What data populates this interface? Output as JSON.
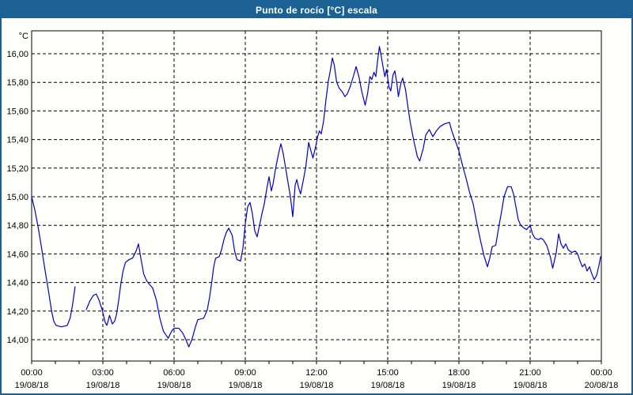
{
  "window": {
    "title": "Punto de rocío [°C] escala",
    "title_bar_color": "#1c6193",
    "border_color": "#1c6193",
    "background": "#ffffff"
  },
  "chart_data": {
    "type": "line",
    "title": "Punto de rocío [°C] escala",
    "y_unit_label": "°C",
    "series_name": "Punto de rocío",
    "line_color": "#0000cc",
    "grid": "dashed",
    "grid_color": "#000000",
    "ylim": [
      13.85,
      16.16
    ],
    "xlim_hours": [
      0,
      24
    ],
    "y_ticks": [
      {
        "v": 16.0,
        "label": "16,00"
      },
      {
        "v": 15.8,
        "label": "15,80"
      },
      {
        "v": 15.6,
        "label": "15,60"
      },
      {
        "v": 15.4,
        "label": "15,40"
      },
      {
        "v": 15.2,
        "label": "15,20"
      },
      {
        "v": 15.0,
        "label": "15,00"
      },
      {
        "v": 14.8,
        "label": "14,80"
      },
      {
        "v": 14.6,
        "label": "14,60"
      },
      {
        "v": 14.4,
        "label": "14,40"
      },
      {
        "v": 14.2,
        "label": "14,20"
      },
      {
        "v": 14.0,
        "label": "14,00"
      }
    ],
    "x_ticks": [
      {
        "hour": 0,
        "time": "00:00",
        "date": "19/08/18"
      },
      {
        "hour": 3,
        "time": "03:00",
        "date": "19/08/18"
      },
      {
        "hour": 6,
        "time": "06:00",
        "date": "19/08/18"
      },
      {
        "hour": 9,
        "time": "09:00",
        "date": "19/08/18"
      },
      {
        "hour": 12,
        "time": "12:00",
        "date": "19/08/18"
      },
      {
        "hour": 15,
        "time": "15:00",
        "date": "19/08/18"
      },
      {
        "hour": 18,
        "time": "18:00",
        "date": "19/08/18"
      },
      {
        "hour": 21,
        "time": "21:00",
        "date": "19/08/18"
      },
      {
        "hour": 24,
        "time": "00:00",
        "date": "20/08/18"
      }
    ],
    "minor_tick_every_hours": 1,
    "points": [
      [
        0.0,
        15.0
      ],
      [
        0.13,
        14.91
      ],
      [
        0.27,
        14.79
      ],
      [
        0.42,
        14.64
      ],
      [
        0.57,
        14.48
      ],
      [
        0.72,
        14.33
      ],
      [
        0.83,
        14.21
      ],
      [
        0.93,
        14.13
      ],
      [
        1.03,
        14.1
      ],
      [
        1.25,
        14.09
      ],
      [
        1.5,
        14.1
      ],
      [
        1.62,
        14.15
      ],
      [
        1.72,
        14.24
      ],
      [
        1.83,
        14.37
      ],
      null,
      [
        2.3,
        14.21
      ],
      [
        2.45,
        14.27
      ],
      [
        2.6,
        14.31
      ],
      [
        2.72,
        14.32
      ],
      [
        2.83,
        14.28
      ],
      [
        2.97,
        14.21
      ],
      [
        3.1,
        14.12
      ],
      [
        3.17,
        14.1
      ],
      [
        3.28,
        14.17
      ],
      [
        3.4,
        14.11
      ],
      [
        3.5,
        14.13
      ],
      [
        3.58,
        14.18
      ],
      [
        3.67,
        14.28
      ],
      [
        3.75,
        14.38
      ],
      [
        3.85,
        14.48
      ],
      [
        3.95,
        14.54
      ],
      [
        4.1,
        14.56
      ],
      [
        4.25,
        14.57
      ],
      [
        4.4,
        14.62
      ],
      [
        4.5,
        14.67
      ],
      [
        4.6,
        14.57
      ],
      [
        4.72,
        14.46
      ],
      [
        4.85,
        14.41
      ],
      [
        5.0,
        14.38
      ],
      [
        5.1,
        14.36
      ],
      [
        5.25,
        14.28
      ],
      [
        5.4,
        14.15
      ],
      [
        5.55,
        14.06
      ],
      [
        5.75,
        14.01
      ],
      [
        5.9,
        14.06
      ],
      [
        6.0,
        14.08
      ],
      [
        6.2,
        14.08
      ],
      [
        6.35,
        14.05
      ],
      [
        6.5,
        14.0
      ],
      [
        6.62,
        13.95
      ],
      [
        6.75,
        14.0
      ],
      [
        6.9,
        14.09
      ],
      [
        7.0,
        14.14
      ],
      [
        7.25,
        14.15
      ],
      [
        7.4,
        14.21
      ],
      [
        7.5,
        14.3
      ],
      [
        7.6,
        14.42
      ],
      [
        7.67,
        14.51
      ],
      [
        7.75,
        14.57
      ],
      [
        7.9,
        14.58
      ],
      [
        8.0,
        14.63
      ],
      [
        8.1,
        14.7
      ],
      [
        8.2,
        14.75
      ],
      [
        8.3,
        14.78
      ],
      [
        8.45,
        14.73
      ],
      [
        8.55,
        14.62
      ],
      [
        8.65,
        14.56
      ],
      [
        8.8,
        14.55
      ],
      [
        8.9,
        14.64
      ],
      [
        9.0,
        14.81
      ],
      [
        9.1,
        14.93
      ],
      [
        9.2,
        14.96
      ],
      [
        9.3,
        14.88
      ],
      [
        9.4,
        14.76
      ],
      [
        9.5,
        14.72
      ],
      [
        9.6,
        14.8
      ],
      [
        9.7,
        14.88
      ],
      [
        9.8,
        14.95
      ],
      [
        9.9,
        15.05
      ],
      [
        10.0,
        15.14
      ],
      [
        10.1,
        15.04
      ],
      [
        10.17,
        15.09
      ],
      [
        10.28,
        15.2
      ],
      [
        10.4,
        15.3
      ],
      [
        10.5,
        15.37
      ],
      [
        10.6,
        15.3
      ],
      [
        10.7,
        15.2
      ],
      [
        10.8,
        15.1
      ],
      [
        10.9,
        15.0
      ],
      [
        11.0,
        14.86
      ],
      [
        11.1,
        15.08
      ],
      [
        11.17,
        15.12
      ],
      [
        11.25,
        15.06
      ],
      [
        11.33,
        15.02
      ],
      [
        11.45,
        15.12
      ],
      [
        11.55,
        15.21
      ],
      [
        11.67,
        15.38
      ],
      [
        11.75,
        15.33
      ],
      [
        11.85,
        15.27
      ],
      [
        11.95,
        15.34
      ],
      [
        12.05,
        15.42
      ],
      [
        12.12,
        15.46
      ],
      [
        12.2,
        15.44
      ],
      [
        12.3,
        15.53
      ],
      [
        12.4,
        15.68
      ],
      [
        12.5,
        15.81
      ],
      [
        12.58,
        15.88
      ],
      [
        12.67,
        15.97
      ],
      [
        12.75,
        15.92
      ],
      [
        12.85,
        15.8
      ],
      [
        12.95,
        15.76
      ],
      [
        13.1,
        15.73
      ],
      [
        13.2,
        15.7
      ],
      [
        13.3,
        15.72
      ],
      [
        13.42,
        15.77
      ],
      [
        13.55,
        15.84
      ],
      [
        13.67,
        15.91
      ],
      [
        13.8,
        15.83
      ],
      [
        13.9,
        15.74
      ],
      [
        14.05,
        15.64
      ],
      [
        14.15,
        15.72
      ],
      [
        14.25,
        15.84
      ],
      [
        14.33,
        15.82
      ],
      [
        14.42,
        15.87
      ],
      [
        14.5,
        15.84
      ],
      [
        14.58,
        15.96
      ],
      [
        14.65,
        16.05
      ],
      [
        14.72,
        15.99
      ],
      [
        14.8,
        15.91
      ],
      [
        14.88,
        15.84
      ],
      [
        14.95,
        15.89
      ],
      [
        15.05,
        15.77
      ],
      [
        15.13,
        15.74
      ],
      [
        15.22,
        15.85
      ],
      [
        15.3,
        15.88
      ],
      [
        15.38,
        15.8
      ],
      [
        15.45,
        15.7
      ],
      [
        15.55,
        15.79
      ],
      [
        15.63,
        15.83
      ],
      [
        15.75,
        15.75
      ],
      [
        15.85,
        15.63
      ],
      [
        15.95,
        15.52
      ],
      [
        16.1,
        15.39
      ],
      [
        16.25,
        15.28
      ],
      [
        16.35,
        15.25
      ],
      [
        16.5,
        15.34
      ],
      [
        16.6,
        15.43
      ],
      [
        16.75,
        15.47
      ],
      [
        16.9,
        15.42
      ],
      [
        17.05,
        15.46
      ],
      [
        17.2,
        15.49
      ],
      [
        17.4,
        15.51
      ],
      [
        17.6,
        15.52
      ],
      [
        17.7,
        15.46
      ],
      [
        17.85,
        15.39
      ],
      [
        18.0,
        15.32
      ],
      [
        18.15,
        15.22
      ],
      [
        18.3,
        15.13
      ],
      [
        18.45,
        15.03
      ],
      [
        18.6,
        14.95
      ],
      [
        18.75,
        14.82
      ],
      [
        18.9,
        14.7
      ],
      [
        19.05,
        14.59
      ],
      [
        19.2,
        14.51
      ],
      [
        19.3,
        14.57
      ],
      [
        19.4,
        14.65
      ],
      [
        19.55,
        14.66
      ],
      [
        19.67,
        14.78
      ],
      [
        19.78,
        14.88
      ],
      [
        19.9,
        15.0
      ],
      [
        20.05,
        15.07
      ],
      [
        20.2,
        15.07
      ],
      [
        20.3,
        15.02
      ],
      [
        20.4,
        14.93
      ],
      [
        20.5,
        14.84
      ],
      [
        20.6,
        14.8
      ],
      [
        20.75,
        14.78
      ],
      [
        20.85,
        14.77
      ],
      [
        21.0,
        14.8
      ],
      [
        21.1,
        14.74
      ],
      [
        21.2,
        14.71
      ],
      [
        21.35,
        14.7
      ],
      [
        21.45,
        14.71
      ],
      [
        21.55,
        14.7
      ],
      [
        21.7,
        14.66
      ],
      [
        21.85,
        14.58
      ],
      [
        21.95,
        14.5
      ],
      [
        22.1,
        14.61
      ],
      [
        22.2,
        14.74
      ],
      [
        22.3,
        14.67
      ],
      [
        22.4,
        14.64
      ],
      [
        22.5,
        14.67
      ],
      [
        22.6,
        14.63
      ],
      [
        22.75,
        14.61
      ],
      [
        22.9,
        14.62
      ],
      [
        23.0,
        14.6
      ],
      [
        23.1,
        14.55
      ],
      [
        23.2,
        14.51
      ],
      [
        23.3,
        14.53
      ],
      [
        23.4,
        14.48
      ],
      [
        23.5,
        14.51
      ],
      [
        23.6,
        14.46
      ],
      [
        23.7,
        14.42
      ],
      [
        23.8,
        14.45
      ],
      [
        23.9,
        14.52
      ],
      [
        23.97,
        14.58
      ]
    ]
  }
}
